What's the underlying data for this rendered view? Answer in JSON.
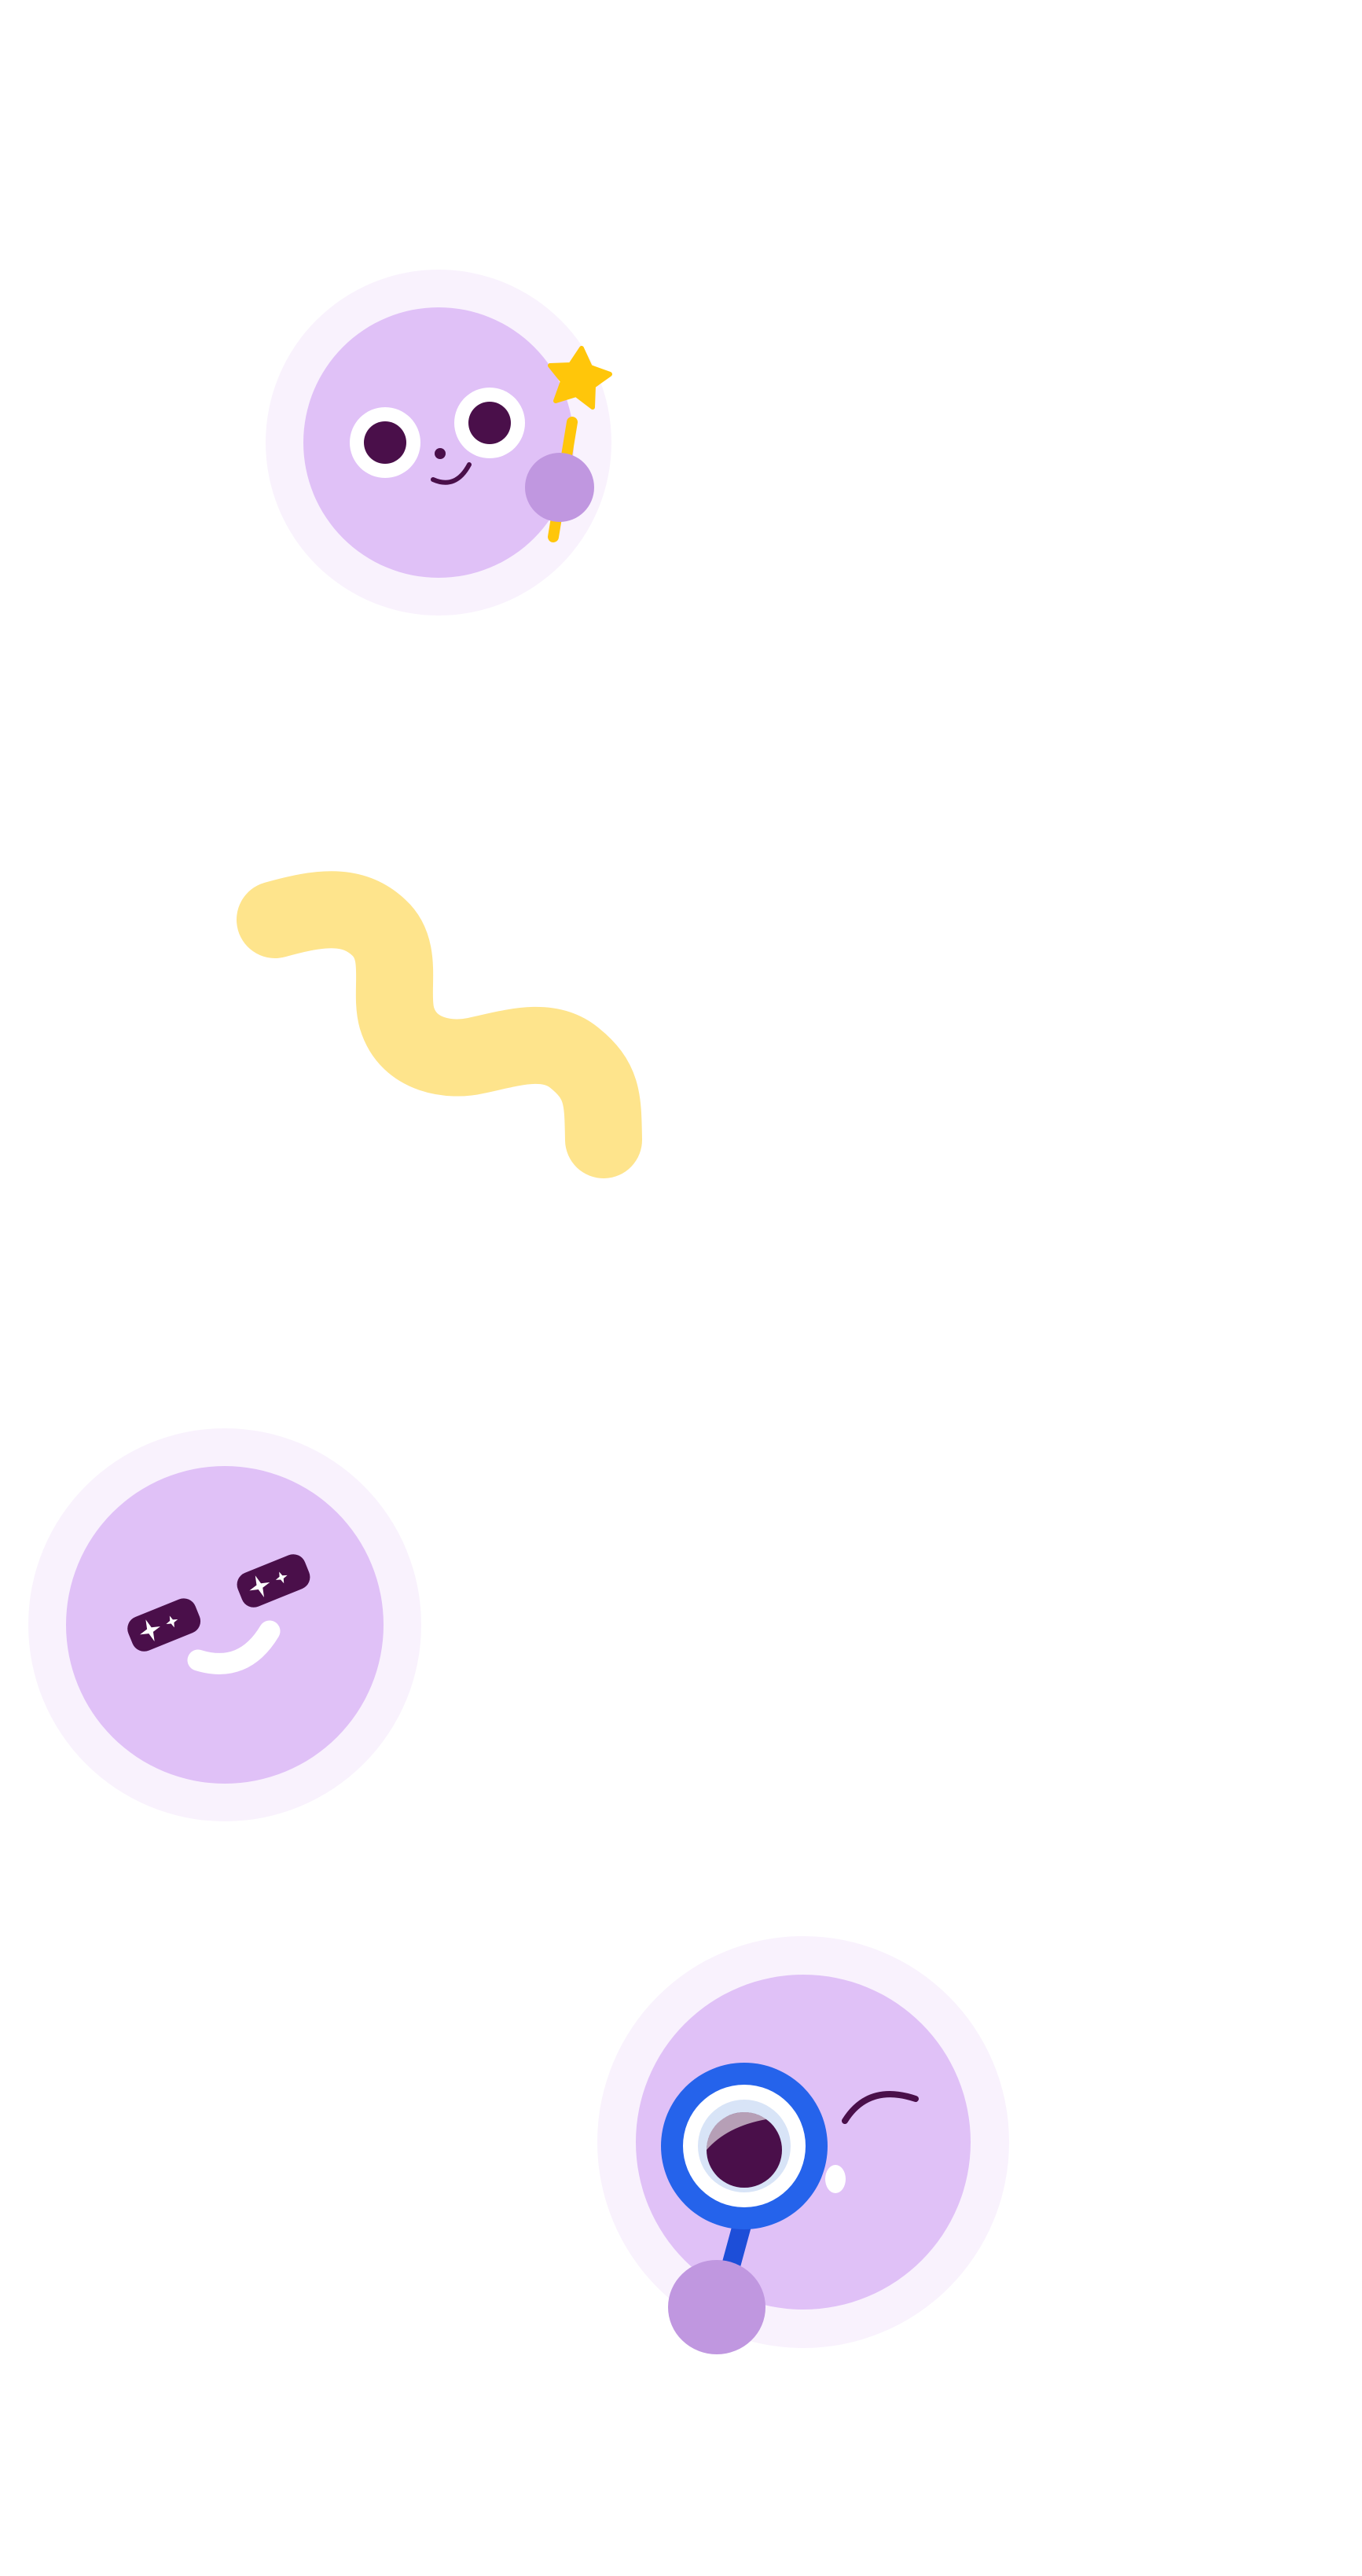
{
  "illustrations": [
    {
      "name": "face-with-magic-wand",
      "icon": "star-icon"
    },
    {
      "name": "squiggle",
      "icon": "squiggle-line"
    },
    {
      "name": "face-with-sparkle-eyes",
      "icon": "sparkle-icon"
    },
    {
      "name": "face-with-magnifying-glass",
      "icon": "magnifying-glass-icon"
    }
  ],
  "colors": {
    "background": "#ffffff",
    "halo": "#f9f2fd",
    "face": "#e0c1f7",
    "hand": "#c097e0",
    "eye_pupil": "#4a0f4a",
    "eye_white": "#ffffff",
    "star": "#ffc60a",
    "wand": "#ffc60a",
    "squiggle": "#fee48c",
    "magnifier_ring": "#2563eb",
    "magnifier_handle": "#1d4ed8",
    "lens_tint": "#d8e4f7"
  }
}
